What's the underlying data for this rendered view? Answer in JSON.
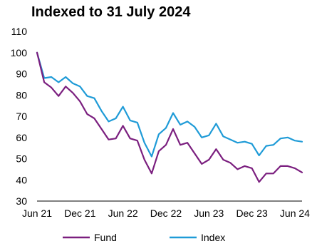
{
  "chart_data": {
    "type": "line",
    "title": "Indexed to 31 July 2024",
    "ylim": [
      30,
      110
    ],
    "yticks": [
      30,
      40,
      50,
      60,
      70,
      80,
      90,
      100,
      110
    ],
    "x_tick_labels": [
      "Jun 21",
      "Dec 21",
      "Jun 22",
      "Dec 22",
      "Jun 23",
      "Dec 23",
      "Jun 24"
    ],
    "x_tick_positions": [
      0,
      6,
      12,
      18,
      24,
      30,
      36
    ],
    "x_range": [
      0,
      37
    ],
    "grid": false,
    "legend_position": "bottom",
    "series": [
      {
        "name": "Fund",
        "color": "#7B1F7F",
        "x": [
          0,
          1,
          2,
          3,
          4,
          5,
          6,
          7,
          8,
          9,
          10,
          11,
          12,
          13,
          14,
          15,
          16,
          17,
          18,
          19,
          20,
          21,
          22,
          23,
          24,
          25,
          26,
          27,
          28,
          29,
          30,
          31,
          32,
          33,
          34,
          35,
          36,
          37
        ],
        "values": [
          100,
          86,
          83.5,
          79.5,
          84,
          81,
          77,
          71,
          69,
          64,
          59,
          59.5,
          65.5,
          59.5,
          58.5,
          49.5,
          43,
          53.5,
          56.5,
          64,
          56.5,
          57.5,
          52.5,
          47.5,
          49.5,
          54.5,
          49.5,
          48,
          45,
          46.5,
          45.5,
          39,
          43,
          43,
          46.5,
          46.5,
          45.5,
          43.5
        ]
      },
      {
        "name": "Index",
        "color": "#1F9BD7",
        "x": [
          0,
          1,
          2,
          3,
          4,
          5,
          6,
          7,
          8,
          9,
          10,
          11,
          12,
          13,
          14,
          15,
          16,
          17,
          18,
          19,
          20,
          21,
          22,
          23,
          24,
          25,
          26,
          27,
          28,
          29,
          30,
          31,
          32,
          33,
          34,
          35,
          36,
          37
        ],
        "values": [
          100,
          88,
          88.5,
          86,
          88.5,
          85.5,
          84,
          79.5,
          78.5,
          72.5,
          67.5,
          69,
          74.5,
          68,
          67,
          57.5,
          51,
          61.5,
          64.5,
          71.5,
          66,
          67.5,
          65,
          60,
          61,
          66.5,
          60.5,
          59,
          57.5,
          58,
          57,
          51.5,
          56,
          56.5,
          59.5,
          60,
          58.5,
          58
        ]
      }
    ]
  }
}
